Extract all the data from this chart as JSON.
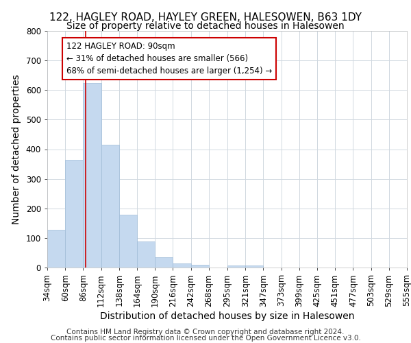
{
  "title1": "122, HAGLEY ROAD, HAYLEY GREEN, HALESOWEN, B63 1DY",
  "title2": "Size of property relative to detached houses in Halesowen",
  "xlabel": "Distribution of detached houses by size in Halesowen",
  "ylabel": "Number of detached properties",
  "bar_color": "#c5d9ef",
  "bar_edge_color": "#a0bcd8",
  "background_color": "#ffffff",
  "grid_color": "#d0d8e0",
  "bin_edges": [
    34,
    60,
    86,
    112,
    138,
    164,
    190,
    216,
    242,
    268,
    295,
    321,
    347,
    373,
    399,
    425,
    451,
    477,
    503,
    529,
    555
  ],
  "bar_heights": [
    128,
    365,
    623,
    415,
    178,
    88,
    35,
    15,
    10,
    0,
    8,
    8,
    0,
    0,
    0,
    0,
    0,
    0,
    0,
    0
  ],
  "property_size": 90,
  "red_line_color": "#cc0000",
  "annotation_line1": "122 HAGLEY ROAD: 90sqm",
  "annotation_line2": "← 31% of detached houses are smaller (566)",
  "annotation_line3": "68% of semi-detached houses are larger (1,254) →",
  "annotation_box_color": "#ffffff",
  "annotation_border_color": "#cc0000",
  "ylim": [
    0,
    800
  ],
  "yticks": [
    0,
    100,
    200,
    300,
    400,
    500,
    600,
    700,
    800
  ],
  "footer1": "Contains HM Land Registry data © Crown copyright and database right 2024.",
  "footer2": "Contains public sector information licensed under the Open Government Licence v3.0.",
  "title1_fontsize": 11,
  "title2_fontsize": 10,
  "axis_label_fontsize": 10,
  "tick_fontsize": 8.5,
  "annotation_fontsize": 8.5,
  "footer_fontsize": 7.5
}
